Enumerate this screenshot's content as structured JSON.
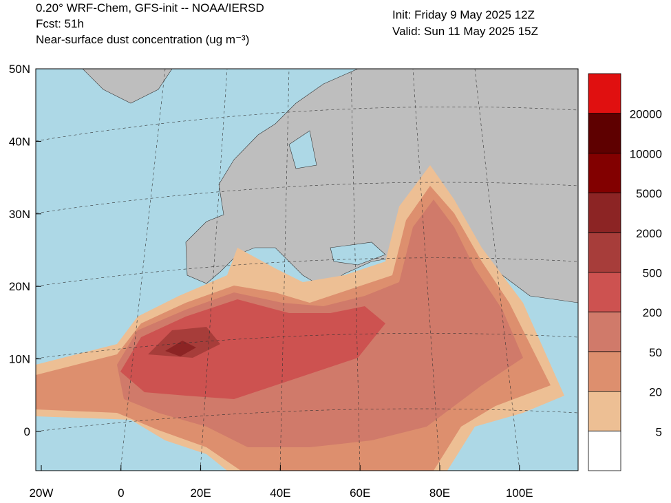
{
  "header": {
    "title": "0.20° WRF-Chem, GFS-init -- NOAA/IERSD",
    "forecast": "Fcst: 51h",
    "subtitle": "Near-surface dust concentration (ug m⁻³)",
    "init": "Init: Friday 9 May 2025  12Z",
    "valid": "Valid: Sun 11 May 2025  15Z"
  },
  "axes": {
    "lat_labels": [
      "50N",
      "40N",
      "30N",
      "20N",
      "10N",
      "0"
    ],
    "lon_labels": [
      "20W",
      "0",
      "20E",
      "40E",
      "60E",
      "80E",
      "100E"
    ]
  },
  "colorbar": {
    "levels": [
      5,
      20,
      50,
      200,
      500,
      2000,
      5000,
      10000,
      20000
    ],
    "colors": [
      "#ffffff",
      "#edbf94",
      "#dd8f6e",
      "#d07a6a",
      "#cd5250",
      "#a73d3a",
      "#8c2424",
      "#820000",
      "#5e0000",
      "#e01010"
    ]
  }
}
